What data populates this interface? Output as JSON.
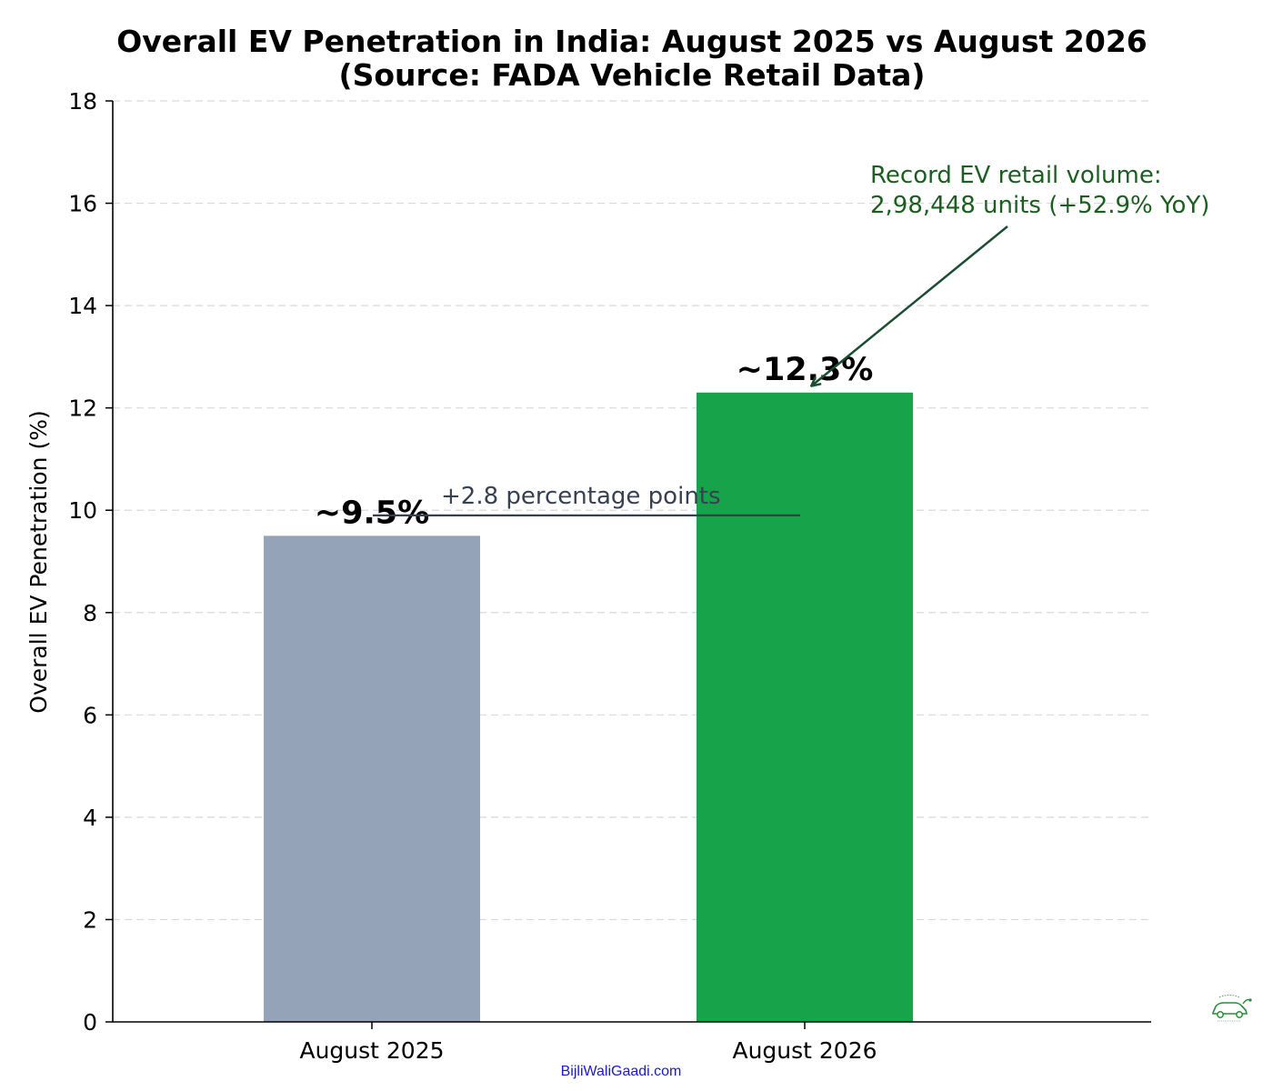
{
  "chart_data": {
    "type": "bar",
    "title_line1": "Overall EV Penetration in India: August 2025 vs August 2026",
    "title_line2": "(Source: FADA Vehicle Retail Data)",
    "xlabel": "",
    "ylabel": "Overall EV Penetration (%)",
    "ylim": [
      0,
      18
    ],
    "yticks": [
      0,
      2,
      4,
      6,
      8,
      10,
      12,
      14,
      16,
      18
    ],
    "grid": "horizontal-dashed",
    "categories": [
      "August 2025",
      "August 2026"
    ],
    "values": [
      9.5,
      12.3
    ],
    "bar_colors": [
      "#94a3b8",
      "#16a34a"
    ],
    "value_labels": [
      "~9.5%",
      "~12.3%"
    ],
    "annotations": {
      "delta": {
        "text": "+2.8 percentage points",
        "at_value": 9.9,
        "color": "#334155"
      },
      "callout": {
        "line1": "Record EV retail volume:",
        "line2": "2,98,448 units (+52.9% YoY)",
        "color": "#1b4d32",
        "points_to": "August 2026"
      }
    }
  },
  "watermark": {
    "text": "BijliWaliGaadi.com",
    "logo_icon": "ev-car-logo"
  }
}
